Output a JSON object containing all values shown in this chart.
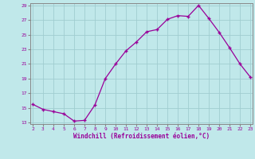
{
  "x": [
    2,
    3,
    4,
    5,
    6,
    7,
    8,
    9,
    10,
    11,
    12,
    13,
    14,
    15,
    16,
    17,
    18,
    19,
    20,
    21,
    22,
    23
  ],
  "y": [
    15.5,
    14.8,
    14.5,
    14.2,
    13.2,
    13.3,
    15.4,
    19.0,
    21.0,
    22.8,
    24.0,
    25.4,
    25.7,
    27.1,
    27.6,
    27.5,
    29.0,
    27.2,
    25.3,
    23.2,
    21.0,
    19.2
  ],
  "line_color": "#990099",
  "marker": "+",
  "bg_color": "#c0e8ea",
  "grid_color": "#a0cdd0",
  "axis_color": "#888888",
  "label_color": "#990099",
  "xlabel": "Windchill (Refroidissement éolien,°C)",
  "xlim": [
    2,
    23
  ],
  "ylim": [
    13,
    29
  ],
  "yticks": [
    13,
    15,
    17,
    19,
    21,
    23,
    25,
    27,
    29
  ],
  "xticks": [
    2,
    3,
    4,
    5,
    6,
    7,
    8,
    9,
    10,
    11,
    12,
    13,
    14,
    15,
    16,
    17,
    18,
    19,
    20,
    21,
    22,
    23
  ]
}
